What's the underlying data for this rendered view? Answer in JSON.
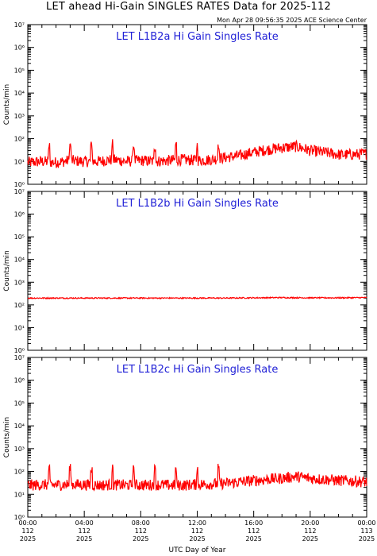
{
  "title": "LET ahead Hi-Gain SINGLES RATES Data for 2025-112",
  "timestamp": "Mon Apr 28 09:56:35 2025 ACE Science Center",
  "colors": {
    "series": "#ff0000",
    "panel_title": "#1f1fd6",
    "axes": "#000000"
  },
  "chart_data": [
    {
      "type": "line",
      "title": "LET L1B2a Hi Gain Singles Rate",
      "ylabel": "Counts/min",
      "xlabel": "",
      "yscale": "log",
      "ylim": [
        1,
        10000000
      ],
      "xlim": [
        0,
        24
      ],
      "grid": false,
      "series": [
        {
          "x": [
            0,
            1,
            2,
            3,
            4,
            5,
            6,
            7,
            8,
            9,
            10,
            11,
            12,
            13,
            14,
            15,
            16,
            17,
            18,
            19,
            20,
            21,
            22,
            23,
            24
          ],
          "values": [
            9,
            10,
            9,
            11,
            10,
            10,
            12,
            10,
            11,
            10,
            11,
            12,
            11,
            12,
            15,
            18,
            25,
            33,
            40,
            45,
            30,
            25,
            20,
            20,
            22
          ],
          "spikes_x": [
            1.5,
            3,
            4.5,
            6,
            7.5,
            9,
            10.5,
            12,
            13.5
          ]
        }
      ]
    },
    {
      "type": "line",
      "title": "LET L1B2b Hi Gain Singles Rate",
      "ylabel": "Counts/min",
      "xlabel": "",
      "yscale": "log",
      "ylim": [
        1,
        10000000
      ],
      "xlim": [
        0,
        24
      ],
      "grid": false,
      "series": [
        {
          "x": [
            0,
            2,
            4,
            6,
            8,
            10,
            12,
            14,
            16,
            18,
            20,
            22,
            24
          ],
          "values": [
            200,
            200,
            200,
            200,
            200,
            200,
            200,
            200,
            205,
            210,
            205,
            205,
            210
          ]
        }
      ]
    },
    {
      "type": "line",
      "title": "LET L1B2c Hi Gain Singles Rate",
      "ylabel": "Counts/min",
      "xlabel": "UTC Day of Year",
      "yscale": "log",
      "ylim": [
        1,
        10000000
      ],
      "xlim": [
        0,
        24
      ],
      "grid": false,
      "series": [
        {
          "x": [
            0,
            1,
            2,
            3,
            4,
            5,
            6,
            7,
            8,
            9,
            10,
            11,
            12,
            13,
            14,
            15,
            16,
            17,
            18,
            19,
            20,
            21,
            22,
            23,
            24
          ],
          "values": [
            25,
            26,
            26,
            27,
            26,
            25,
            26,
            25,
            25,
            26,
            25,
            25,
            27,
            28,
            30,
            35,
            40,
            45,
            50,
            60,
            50,
            45,
            40,
            38,
            35
          ],
          "spikes_x": [
            1.5,
            3,
            4.5,
            6,
            7.5,
            9,
            10.5,
            12,
            13.5
          ]
        }
      ]
    }
  ],
  "y_tick_labels": [
    "10⁰",
    "10¹",
    "10²",
    "10³",
    "10⁴",
    "10⁵",
    "10⁶",
    "10⁷"
  ],
  "x_ticks": [
    {
      "x": 0,
      "time": "00:00",
      "doy": "112",
      "year": "2025"
    },
    {
      "x": 4,
      "time": "04:00",
      "doy": "112",
      "year": "2025"
    },
    {
      "x": 8,
      "time": "08:00",
      "doy": "112",
      "year": "2025"
    },
    {
      "x": 12,
      "time": "12:00",
      "doy": "112",
      "year": "2025"
    },
    {
      "x": 16,
      "time": "16:00",
      "doy": "112",
      "year": "2025"
    },
    {
      "x": 20,
      "time": "20:00",
      "doy": "112",
      "year": "2025"
    },
    {
      "x": 24,
      "time": "00:00",
      "doy": "113",
      "year": "2025"
    }
  ]
}
